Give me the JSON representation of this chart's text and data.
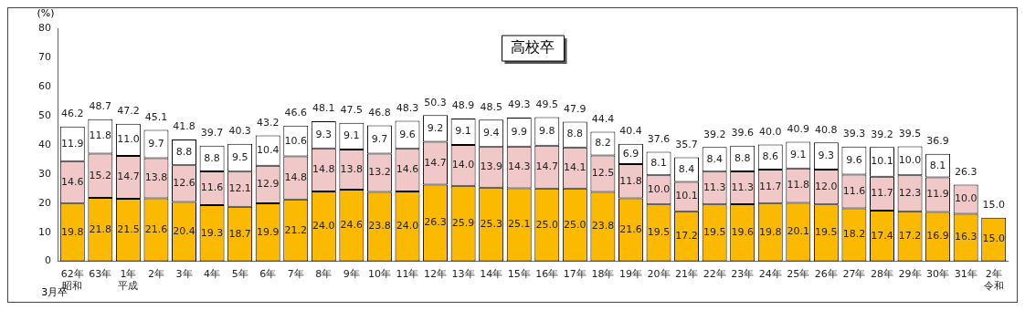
{
  "chart_data": {
    "type": "bar",
    "title": "高校卒",
    "ylabel": "(%)",
    "stacked": true,
    "categories": [
      "62年昭和",
      "63年",
      "1年平成",
      "2年",
      "3年",
      "4年",
      "5年",
      "6年",
      "7年",
      "8年",
      "9年",
      "10年",
      "11年",
      "12年",
      "13年",
      "14年",
      "15年",
      "16年",
      "17年",
      "18年",
      "19年",
      "20年",
      "21年",
      "22年",
      "23年",
      "24年",
      "25年",
      "26年",
      "27年",
      "28年",
      "29年",
      "30年",
      "31年",
      "2年令和"
    ],
    "series": [
      {
        "color": "#fbb900",
        "values": [
          19.8,
          21.8,
          21.5,
          21.6,
          20.4,
          19.3,
          18.7,
          19.9,
          21.2,
          24.0,
          24.6,
          23.8,
          24.0,
          26.3,
          25.9,
          25.3,
          25.1,
          25.0,
          25.0,
          23.8,
          21.6,
          19.5,
          17.2,
          19.5,
          19.6,
          19.8,
          20.1,
          19.5,
          18.2,
          17.4,
          17.2,
          16.9,
          16.3,
          15.0
        ],
        "value_labels": [
          "19.8",
          "21.8",
          "21.5",
          "21.6",
          "20.4",
          "19.3",
          "18.7",
          "19.9",
          "21.2",
          "24.0",
          "24.6",
          "23.8",
          "24.0",
          "26.3",
          "25.9",
          "25.3",
          "25.1",
          "25.0",
          "25.0",
          "23.8",
          "21.6",
          "19.5",
          "17.2",
          "19.5",
          "19.6",
          "19.8",
          "20.1",
          "19.5",
          "18.2",
          "17.4",
          "17.2",
          "16.9",
          "16.3",
          "15.0"
        ]
      },
      {
        "color": "#f0c8c8",
        "values": [
          14.6,
          15.2,
          14.7,
          13.8,
          12.6,
          11.6,
          12.1,
          12.9,
          14.8,
          14.8,
          13.8,
          13.2,
          14.6,
          14.7,
          14.0,
          13.9,
          14.3,
          14.7,
          14.1,
          12.5,
          11.8,
          10.0,
          10.1,
          11.3,
          11.3,
          11.7,
          11.8,
          12.0,
          11.6,
          11.7,
          12.3,
          11.9,
          10.0,
          null
        ],
        "value_labels": [
          "14.6",
          "15.2",
          "14.7",
          "13.8",
          "12.6",
          "11.6",
          "12.1",
          "12.9",
          "14.8",
          "14.8",
          "13.8",
          "13.2",
          "14.6",
          "14.7",
          "14.0",
          "13.9",
          "14.3",
          "14.7",
          "14.1",
          "12.5",
          "11.8",
          "10.0",
          "10.1",
          "11.3",
          "11.3",
          "11.7",
          "11.8",
          "12.0",
          "11.6",
          "11.7",
          "12.3",
          "11.9",
          "10.0",
          null
        ]
      },
      {
        "color": "#ffffff",
        "values": [
          11.9,
          11.8,
          11.0,
          9.7,
          8.8,
          8.8,
          9.5,
          10.4,
          10.6,
          9.3,
          9.1,
          9.7,
          9.6,
          9.2,
          9.1,
          9.4,
          9.9,
          9.8,
          8.8,
          8.2,
          6.9,
          8.1,
          8.4,
          8.4,
          8.8,
          8.6,
          9.1,
          9.3,
          9.6,
          10.1,
          10.0,
          8.1,
          null,
          null
        ],
        "value_labels": [
          "11.9",
          "11.8",
          "11.0",
          "9.7",
          "8.8",
          "8.8",
          "9.5",
          "10.4",
          "10.6",
          "9.3",
          "9.1",
          "9.7",
          "9.6",
          "9.2",
          "9.1",
          "9.4",
          "9.9",
          "9.8",
          "8.8",
          "8.2",
          "6.9",
          "8.1",
          "8.4",
          "8.4",
          "8.8",
          "8.6",
          "9.1",
          "9.3",
          "9.6",
          "10.1",
          "10.0",
          "8.1",
          null,
          null
        ]
      }
    ],
    "totals": [
      "46.2",
      "48.7",
      "47.2",
      "45.1",
      "41.8",
      "39.7",
      "40.3",
      "43.2",
      "46.6",
      "48.1",
      "47.5",
      "46.8",
      "48.3",
      "50.3",
      "48.9",
      "48.5",
      "49.3",
      "49.5",
      "47.9",
      "44.4",
      "40.4",
      "37.6",
      "35.7",
      "39.2",
      "39.6",
      "40.0",
      "40.9",
      "40.8",
      "39.3",
      "39.2",
      "39.5",
      "36.9",
      "26.3",
      "15.0"
    ],
    "annotations": [
      "3月卒"
    ],
    "ylim": [
      0,
      80
    ],
    "yticks": [
      0,
      10,
      20,
      30,
      40,
      50,
      60,
      70,
      80
    ],
    "grid": false,
    "legend": false
  }
}
